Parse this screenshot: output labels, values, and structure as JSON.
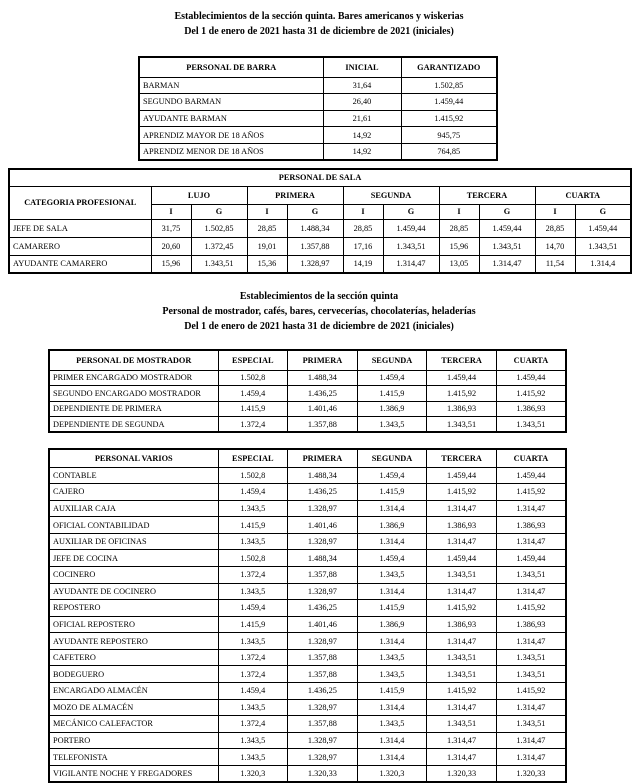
{
  "titles": {
    "section1_line1": "Establecimientos de la sección quinta. Bares americanos y wiskerias",
    "section1_line2": "Del 1 de enero de 2021 hasta 31 de diciembre de 2021 (iniciales)",
    "section2_line1": "Establecimientos de la sección quinta",
    "section2_line2": "Personal de mostrador, cafés, bares, cervecerías, chocolaterías, heladerías",
    "section2_line3": "Del 1 de enero de 2021 hasta 31 de diciembre de 2021 (iniciales)"
  },
  "barra_table": {
    "headers": [
      "PERSONAL DE BARRA",
      "INICIAL",
      "GARANTIZADO"
    ],
    "rows": [
      [
        "BARMAN",
        "31,64",
        "1.502,85"
      ],
      [
        "SEGUNDO BARMAN",
        "26,40",
        "1.459,44"
      ],
      [
        "AYUDANTE BARMAN",
        "21,61",
        "1.415,92"
      ],
      [
        "APRENDIZ MAYOR DE 18 AÑOS",
        "14,92",
        "945,75"
      ],
      [
        "APRENDIZ MENOR DE 18 AÑOS",
        "14,92",
        "764,85"
      ]
    ]
  },
  "sala_table": {
    "title": "PERSONAL DE SALA",
    "row_header": "CATEGORIA PROFESIONAL",
    "groups": [
      "LUJO",
      "PRIMERA",
      "SEGUNDA",
      "TERCERA",
      "CUARTA"
    ],
    "subheaders": [
      "I",
      "G"
    ],
    "rows": [
      [
        "JEFE DE SALA",
        "31,75",
        "1.502,85",
        "28,85",
        "1.488,34",
        "28,85",
        "1.459,44",
        "28,85",
        "1.459,44",
        "28,85",
        "1.459,44"
      ],
      [
        "CAMARERO",
        "20,60",
        "1.372,45",
        "19,01",
        "1.357,88",
        "17,16",
        "1.343,51",
        "15,96",
        "1.343,51",
        "14,70",
        "1.343,51"
      ],
      [
        "AYUDANTE CAMARERO",
        "15,96",
        "1.343,51",
        "15,36",
        "1.328,97",
        "14,19",
        "1.314,47",
        "13,05",
        "1.314,47",
        "11,54",
        "1.314,4"
      ]
    ]
  },
  "mostrador_table": {
    "headers": [
      "PERSONAL DE MOSTRADOR",
      "ESPECIAL",
      "PRIMERA",
      "SEGUNDA",
      "TERCERA",
      "CUARTA"
    ],
    "rows": [
      [
        "PRIMER ENCARGADO MOSTRADOR",
        "1.502,8",
        "1.488,34",
        "1.459,4",
        "1.459,44",
        "1.459,44"
      ],
      [
        "SEGUNDO ENCARGADO MOSTRADOR",
        "1.459,4",
        "1.436,25",
        "1.415,9",
        "1.415,92",
        "1.415,92"
      ],
      [
        "DEPENDIENTE DE PRIMERA",
        "1.415,9",
        "1.401,46",
        "1.386,9",
        "1.386,93",
        "1.386,93"
      ],
      [
        "DEPENDIENTE DE SEGUNDA",
        "1.372,4",
        "1.357,88",
        "1.343,5",
        "1.343,51",
        "1.343,51"
      ]
    ]
  },
  "varios_table": {
    "headers": [
      "PERSONAL VARIOS",
      "ESPECIAL",
      "PRIMERA",
      "SEGUNDA",
      "TERCERA",
      "CUARTA"
    ],
    "rows": [
      [
        "CONTABLE",
        "1.502,8",
        "1.488,34",
        "1.459,4",
        "1.459,44",
        "1.459,44"
      ],
      [
        "CAJERO",
        "1.459,4",
        "1.436,25",
        "1.415,9",
        "1.415,92",
        "1.415,92"
      ],
      [
        "AUXILIAR CAJA",
        "1.343,5",
        "1.328,97",
        "1.314,4",
        "1.314,47",
        "1.314,47"
      ],
      [
        "OFICIAL CONTABILIDAD",
        "1.415,9",
        "1.401,46",
        "1.386,9",
        "1.386,93",
        "1.386,93"
      ],
      [
        "AUXILIAR DE OFICINAS",
        "1.343,5",
        "1.328,97",
        "1.314,4",
        "1.314,47",
        "1.314,47"
      ],
      [
        "JEFE DE COCINA",
        "1.502,8",
        "1.488,34",
        "1.459,4",
        "1.459,44",
        "1.459,44"
      ],
      [
        "COCINERO",
        "1.372,4",
        "1.357,88",
        "1.343,5",
        "1.343,51",
        "1.343,51"
      ],
      [
        "AYUDANTE DE COCINERO",
        "1.343,5",
        "1.328,97",
        "1.314,4",
        "1.314,47",
        "1.314,47"
      ],
      [
        "REPOSTERO",
        "1.459,4",
        "1.436,25",
        "1.415,9",
        "1.415,92",
        "1.415,92"
      ],
      [
        "OFICIAL REPOSTERO",
        "1.415,9",
        "1.401,46",
        "1.386,9",
        "1.386,93",
        "1.386,93"
      ],
      [
        "AYUDANTE REPOSTERO",
        "1.343,5",
        "1.328,97",
        "1.314,4",
        "1.314,47",
        "1.314,47"
      ],
      [
        "CAFETERO",
        "1.372,4",
        "1.357,88",
        "1.343,5",
        "1.343,51",
        "1.343,51"
      ],
      [
        "BODEGUERO",
        "1.372,4",
        "1.357,88",
        "1.343,5",
        "1.343,51",
        "1.343,51"
      ],
      [
        "ENCARGADO ALMACÉN",
        "1.459,4",
        "1.436,25",
        "1.415,9",
        "1.415,92",
        "1.415,92"
      ],
      [
        "MOZO DE ALMACÉN",
        "1.343,5",
        "1.328,97",
        "1.314,4",
        "1.314,47",
        "1.314,47"
      ],
      [
        "MECÁNICO CALEFACTOR",
        "1.372,4",
        "1.357,88",
        "1.343,5",
        "1.343,51",
        "1.343,51"
      ],
      [
        "PORTERO",
        "1.343,5",
        "1.328,97",
        "1.314,4",
        "1.314,47",
        "1.314,47"
      ],
      [
        "TELEFONISTA",
        "1.343,5",
        "1.328,97",
        "1.314,4",
        "1.314,47",
        "1.314,47"
      ],
      [
        "VIGILANTE NOCHE Y FREGADORES",
        "1.320,3",
        "1.320,33",
        "1.320,3",
        "1.320,33",
        "1.320,33"
      ]
    ]
  }
}
